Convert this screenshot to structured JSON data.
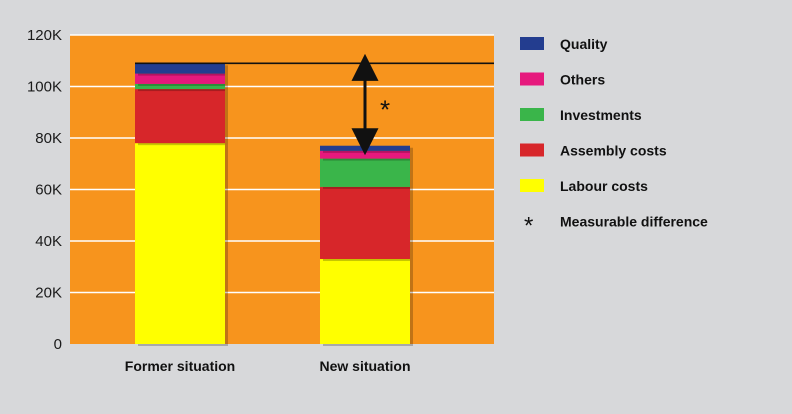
{
  "chart_data": {
    "type": "bar",
    "stacked": true,
    "categories": [
      "Former situation",
      "New situation"
    ],
    "series": [
      {
        "name": "Labour costs",
        "color": "#ffff00",
        "values": [
          78000,
          33000
        ]
      },
      {
        "name": "Assembly costs",
        "color": "#d7262a",
        "values": [
          21000,
          28000
        ]
      },
      {
        "name": "Investments",
        "color": "#3ab54a",
        "values": [
          2000,
          11000
        ]
      },
      {
        "name": "Others",
        "color": "#e6197d",
        "values": [
          4000,
          3000
        ]
      },
      {
        "name": "Quality",
        "color": "#233d8f",
        "values": [
          4000,
          2000
        ]
      }
    ],
    "totals": [
      109000,
      77000
    ],
    "ylim": [
      0,
      120000
    ],
    "yticks": [
      "0",
      "20K",
      "40K",
      "60K",
      "80K",
      "100K",
      "120K"
    ],
    "annotation": {
      "symbol": "*",
      "label": "Measurable difference"
    },
    "plot_background": "#f7941d",
    "grid": true,
    "legend_position": "right"
  }
}
